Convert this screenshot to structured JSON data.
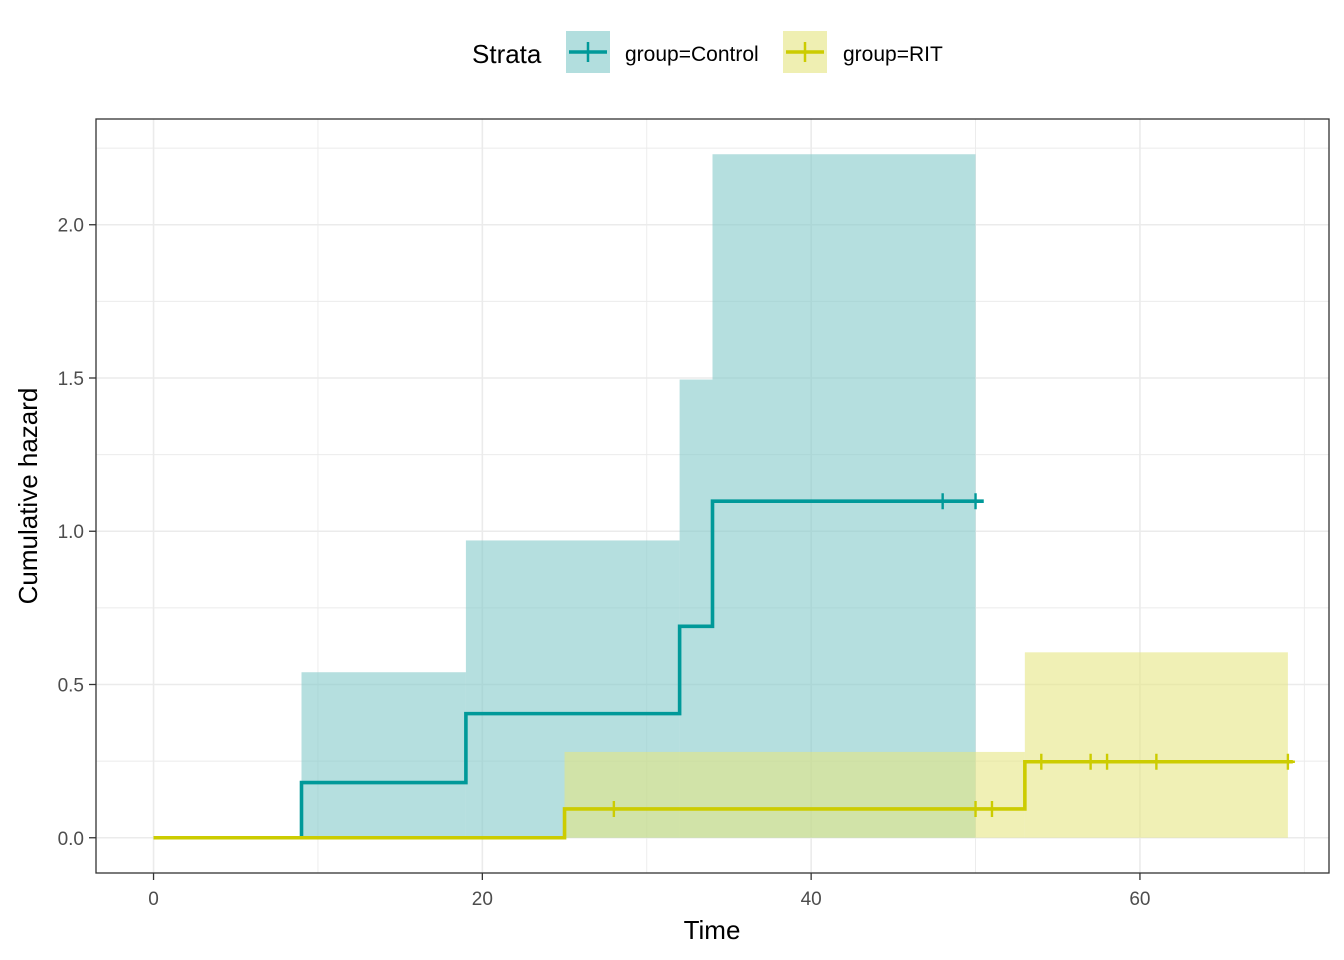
{
  "chart_data": {
    "type": "line",
    "subtype": "step-cumulative-hazard",
    "title": "",
    "xlabel": "Time",
    "ylabel": "Cumulative hazard",
    "xlim": [
      -3.5,
      71.5
    ],
    "ylim": [
      -0.115,
      2.345
    ],
    "x_ticks": [
      0,
      20,
      40,
      60
    ],
    "x_tick_labels": [
      "0",
      "20",
      "40",
      "60"
    ],
    "y_ticks": [
      0.0,
      0.5,
      1.0,
      1.5,
      2.0
    ],
    "y_tick_labels": [
      "0.0",
      "0.5",
      "1.0",
      "1.5",
      "2.0"
    ],
    "grid": true,
    "legend": {
      "title": "Strata",
      "position": "top",
      "entries": [
        "group=Control",
        "group=RIT"
      ]
    },
    "series": [
      {
        "name": "group=Control",
        "color": "#009999",
        "fill_color": "#7FC8C8",
        "step_x": [
          0,
          9,
          19,
          32,
          34,
          50.5
        ],
        "step_y": [
          0,
          0.18,
          0.405,
          0.69,
          1.098,
          1.098
        ],
        "ci_x": [
          9,
          19,
          32,
          34,
          50
        ],
        "ci_lower": [
          0,
          0,
          0,
          0
        ],
        "ci_upper": [
          0.54,
          0.97,
          1.495,
          2.23
        ],
        "censor_x": [
          48,
          50
        ],
        "censor_y": [
          1.098,
          1.098
        ]
      },
      {
        "name": "group=RIT",
        "color": "#CCCC00",
        "fill_color": "#E5E57F",
        "step_x": [
          0,
          25,
          53,
          69.3
        ],
        "step_y": [
          0,
          0.094,
          0.248,
          0.248
        ],
        "ci_x": [
          25,
          53,
          69
        ],
        "ci_lower": [
          0,
          0
        ],
        "ci_upper": [
          0.28,
          0.605
        ],
        "censor_x": [
          28,
          50,
          51,
          54,
          57,
          58,
          61,
          69
        ],
        "censor_y": [
          0.094,
          0.094,
          0.094,
          0.248,
          0.248,
          0.248,
          0.248,
          0.248
        ]
      }
    ]
  }
}
